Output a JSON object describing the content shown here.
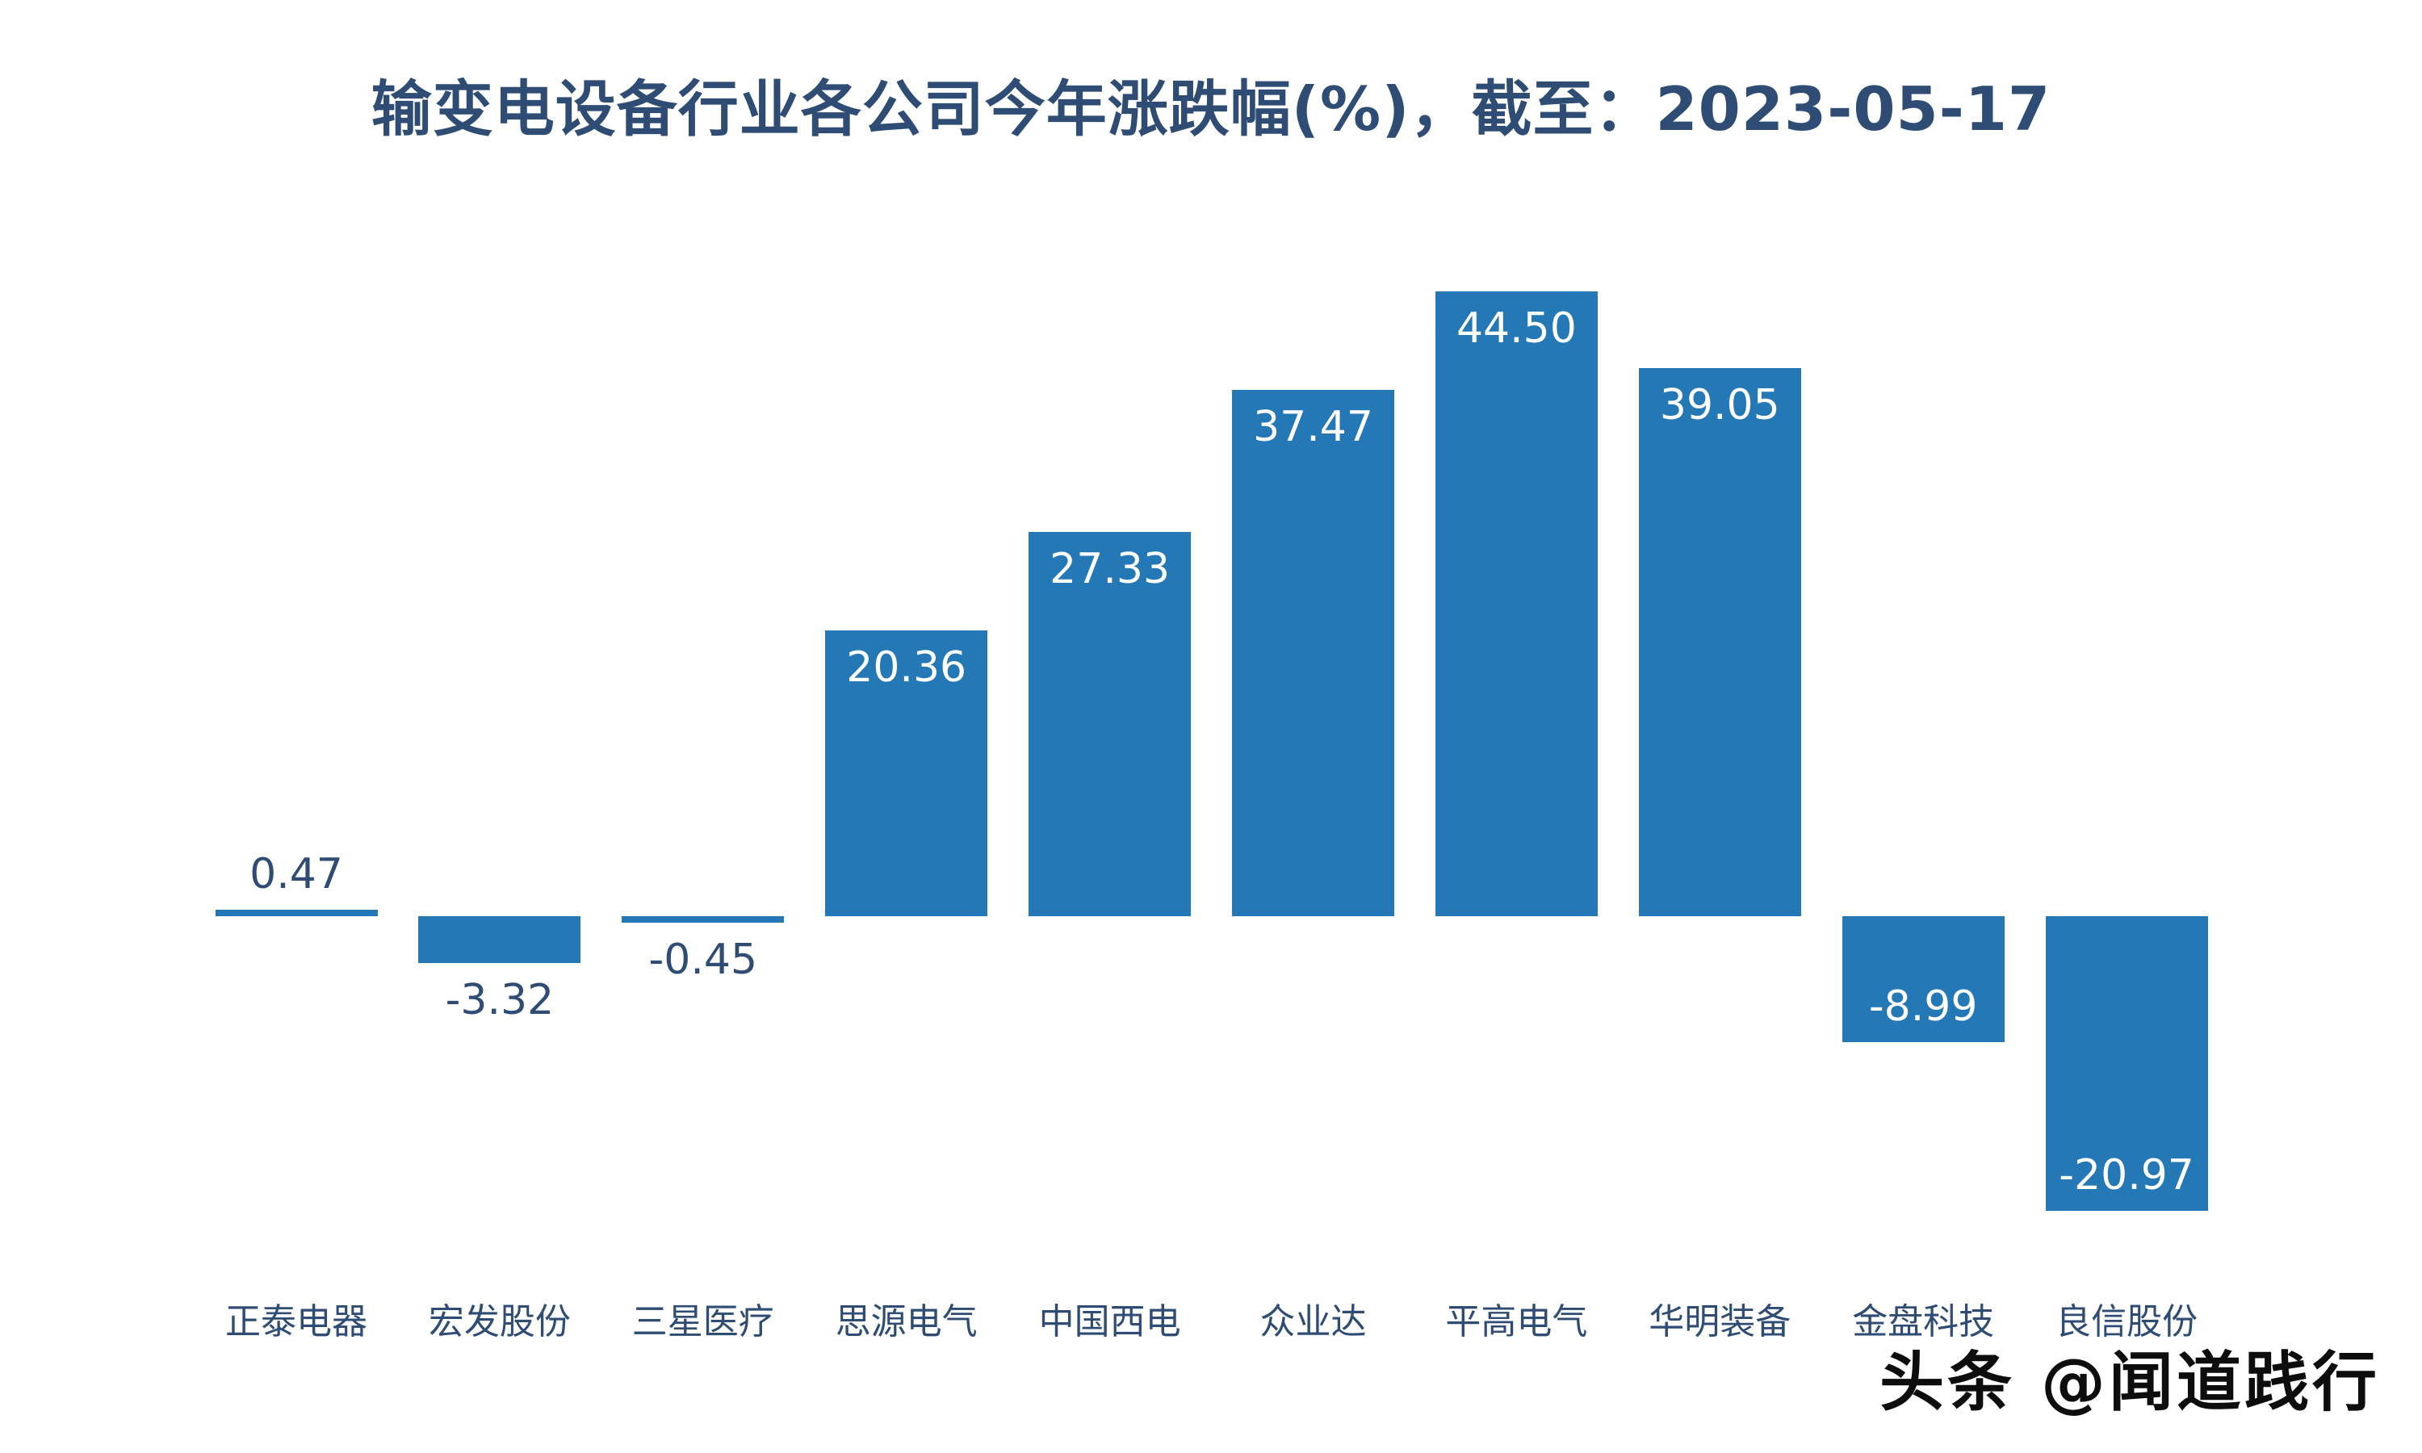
{
  "chart_data": {
    "type": "bar",
    "title": "输变电设备行业各公司今年涨跌幅(%)，截至：2023-05-17",
    "categories": [
      "正泰电器",
      "宏发股份",
      "三星医疗",
      "思源电气",
      "中国西电",
      "众业达",
      "平高电气",
      "华明装备",
      "金盘科技",
      "良信股份"
    ],
    "values": [
      0.47,
      -3.32,
      -0.45,
      20.36,
      27.33,
      37.47,
      44.5,
      39.05,
      -8.99,
      -20.97
    ],
    "value_label_decimals": 2,
    "xlabel": "",
    "ylabel": "",
    "ylim": [
      -25,
      48
    ],
    "grid": false,
    "legend": false,
    "colors": {
      "bar": "#2378b5",
      "text": "#2f4d74",
      "inside_label": "#ffffff",
      "background": "#ffffff"
    }
  },
  "watermark": {
    "text": "头条 @闻道践行",
    "color": "#0d0d0d"
  }
}
